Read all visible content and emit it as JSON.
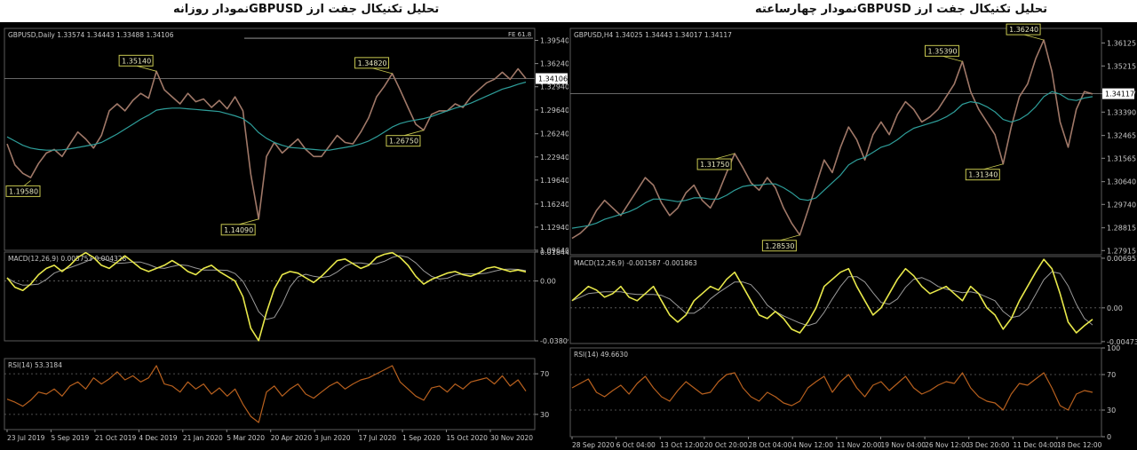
{
  "headings": {
    "left": "تحليل تکنيکال جفت ارز  GBPUSDنمودار روزانه",
    "right": "تحليل تکنيکال جفت ارز  GBPUSDنمودار چهارساعته"
  },
  "colors": {
    "background": "#000000",
    "price_line": "#a07868",
    "ma_line": "#2e9e9a",
    "macd_line": "#e8e84a",
    "signal_line": "#9a9a9a",
    "rsi_line": "#b8601e",
    "text": "#c8c8c8",
    "label_border": "#c8c850"
  },
  "chart_data": [
    {
      "type": "line",
      "id": "daily",
      "info_label": "GBPUSD,Daily  1.33574 1.34443 1.33488 1.34106",
      "price_axis": {
        "ticks": [
          "1.39540",
          "1.36240",
          "1.32940",
          "1.29640",
          "1.26240",
          "1.22940",
          "1.19640",
          "1.16240",
          "1.12940",
          "1.09640"
        ],
        "ylim": [
          1.0964,
          1.4125
        ],
        "current": "1.34106",
        "current_value": 1.34106,
        "fe_label": "FE 61.8",
        "fe_value": 1.3985
      },
      "price": [
        1.248,
        1.218,
        1.206,
        1.2,
        1.22,
        1.235,
        1.24,
        1.23,
        1.248,
        1.265,
        1.255,
        1.242,
        1.26,
        1.295,
        1.305,
        1.295,
        1.31,
        1.32,
        1.313,
        1.3514,
        1.325,
        1.315,
        1.305,
        1.32,
        1.308,
        1.312,
        1.3,
        1.31,
        1.298,
        1.315,
        1.295,
        1.205,
        1.1409,
        1.23,
        1.25,
        1.235,
        1.245,
        1.255,
        1.24,
        1.23,
        1.23,
        1.245,
        1.26,
        1.25,
        1.248,
        1.265,
        1.285,
        1.315,
        1.33,
        1.3482,
        1.325,
        1.3,
        1.276,
        1.2675,
        1.29,
        1.295,
        1.295,
        1.305,
        1.3,
        1.315,
        1.325,
        1.335,
        1.34,
        1.35,
        1.34,
        1.355,
        1.3411
      ],
      "ma": [
        1.258,
        1.252,
        1.246,
        1.242,
        1.24,
        1.239,
        1.239,
        1.2395,
        1.241,
        1.243,
        1.245,
        1.247,
        1.25,
        1.256,
        1.262,
        1.269,
        1.276,
        1.283,
        1.289,
        1.296,
        1.298,
        1.299,
        1.299,
        1.298,
        1.297,
        1.296,
        1.295,
        1.294,
        1.291,
        1.288,
        1.284,
        1.276,
        1.264,
        1.256,
        1.25,
        1.246,
        1.243,
        1.242,
        1.241,
        1.24,
        1.239,
        1.239,
        1.241,
        1.243,
        1.245,
        1.248,
        1.252,
        1.258,
        1.265,
        1.272,
        1.277,
        1.28,
        1.282,
        1.284,
        1.287,
        1.291,
        1.295,
        1.299,
        1.302,
        1.306,
        1.311,
        1.316,
        1.321,
        1.326,
        1.329,
        1.333,
        1.336
      ],
      "price_labels": [
        {
          "text": "1.35140",
          "index": 19,
          "value": 1.3514
        },
        {
          "text": "1.19580",
          "index": 3,
          "value": 1.1958
        },
        {
          "text": "1.14090",
          "index": 32,
          "value": 1.1409
        },
        {
          "text": "1.34820",
          "index": 49,
          "value": 1.3482
        },
        {
          "text": "1.26750",
          "index": 53,
          "value": 1.2675
        }
      ],
      "macd": {
        "label": "MACD(12,26,9) 0.005753 0.004328",
        "ticks": [
          "0.018442",
          "0.00",
          "-0.038095"
        ],
        "ylim": [
          -0.0381,
          0.0184
        ],
        "values": [
          0.002,
          -0.004,
          -0.006,
          -0.002,
          0.004,
          0.008,
          0.01,
          0.006,
          0.01,
          0.015,
          0.018,
          0.015,
          0.01,
          0.008,
          0.012,
          0.016,
          0.012,
          0.008,
          0.006,
          0.008,
          0.01,
          0.013,
          0.01,
          0.006,
          0.004,
          0.008,
          0.01,
          0.006,
          0.003,
          0.0,
          -0.01,
          -0.03,
          -0.038,
          -0.02,
          -0.005,
          0.004,
          0.006,
          0.005,
          0.002,
          -0.001,
          0.003,
          0.008,
          0.013,
          0.014,
          0.011,
          0.008,
          0.01,
          0.015,
          0.017,
          0.018,
          0.015,
          0.01,
          0.003,
          -0.002,
          0.001,
          0.003,
          0.005,
          0.006,
          0.004,
          0.003,
          0.005,
          0.008,
          0.009,
          0.0075,
          0.006,
          0.007,
          0.0058
        ]
      },
      "rsi": {
        "label": "RSI(14) 53.3184",
        "ticks": [
          "70",
          "30"
        ],
        "ylim": [
          15,
          85
        ],
        "values": [
          45,
          42,
          38,
          44,
          52,
          50,
          55,
          48,
          58,
          62,
          55,
          66,
          60,
          65,
          72,
          64,
          68,
          62,
          66,
          78,
          60,
          58,
          52,
          62,
          55,
          60,
          50,
          56,
          48,
          55,
          40,
          28,
          22,
          52,
          58,
          48,
          55,
          60,
          50,
          46,
          52,
          58,
          62,
          55,
          60,
          64,
          66,
          70,
          74,
          78,
          62,
          55,
          48,
          44,
          56,
          58,
          52,
          60,
          55,
          62,
          64,
          66,
          60,
          68,
          58,
          64,
          53
        ]
      },
      "x_ticks": [
        "23 Jul 2019",
        "5 Sep 2019",
        "21 Oct 2019",
        "4 Dec 2019",
        "21 Jan 2020",
        "5 Mar 2020",
        "20 Apr 2020",
        "3 Jun 2020",
        "17 Jul 2020",
        "1 Sep 2020",
        "15 Oct 2020",
        "30 Nov 2020"
      ]
    },
    {
      "type": "line",
      "id": "h4",
      "info_label": "GBPUSD,H4  1.34025 1.34443 1.34017 1.34117",
      "price_axis": {
        "ticks": [
          "1.36125",
          "1.35215",
          "1.34117",
          "1.33390",
          "1.32465",
          "1.31565",
          "1.30640",
          "1.29740",
          "1.28815",
          "1.27915"
        ],
        "ylim": [
          1.2775,
          1.367
        ],
        "current": "1.34117",
        "current_value": 1.34117
      },
      "price": [
        1.284,
        1.286,
        1.289,
        1.295,
        1.299,
        1.296,
        1.293,
        1.298,
        1.303,
        1.308,
        1.305,
        1.298,
        1.293,
        1.296,
        1.302,
        1.305,
        1.299,
        1.296,
        1.302,
        1.31,
        1.3175,
        1.312,
        1.306,
        1.303,
        1.308,
        1.304,
        1.296,
        1.29,
        1.2853,
        1.295,
        1.305,
        1.315,
        1.31,
        1.32,
        1.328,
        1.323,
        1.315,
        1.325,
        1.33,
        1.325,
        1.333,
        1.338,
        1.335,
        1.33,
        1.332,
        1.335,
        1.34,
        1.345,
        1.3539,
        1.342,
        1.335,
        1.33,
        1.325,
        1.3134,
        1.328,
        1.34,
        1.345,
        1.355,
        1.3624,
        1.35,
        1.33,
        1.32,
        1.335,
        1.342,
        1.3411
      ],
      "ma": [
        1.288,
        1.2885,
        1.289,
        1.29,
        1.2915,
        1.2925,
        1.2935,
        1.2945,
        1.296,
        1.298,
        1.2995,
        1.2995,
        1.299,
        1.2985,
        1.299,
        1.3,
        1.3,
        1.2995,
        1.2995,
        1.301,
        1.303,
        1.3045,
        1.305,
        1.305,
        1.3055,
        1.3055,
        1.304,
        1.302,
        1.2995,
        1.299,
        1.3,
        1.303,
        1.306,
        1.309,
        1.313,
        1.315,
        1.316,
        1.318,
        1.32,
        1.321,
        1.323,
        1.3255,
        1.3275,
        1.3285,
        1.3295,
        1.3305,
        1.332,
        1.334,
        1.337,
        1.338,
        1.3375,
        1.336,
        1.334,
        1.331,
        1.33,
        1.331,
        1.333,
        1.336,
        1.34,
        1.342,
        1.341,
        1.339,
        1.3385,
        1.3395,
        1.34
      ],
      "price_labels": [
        {
          "text": "1.31750",
          "index": 20,
          "value": 1.3175
        },
        {
          "text": "1.28530",
          "index": 28,
          "value": 1.2853
        },
        {
          "text": "1.35390",
          "index": 48,
          "value": 1.3539
        },
        {
          "text": "1.31340",
          "index": 53,
          "value": 1.3134
        },
        {
          "text": "1.36240",
          "index": 58,
          "value": 1.3624
        }
      ],
      "macd": {
        "label": "MACD(12,26,9) -0.001587 -0.001863",
        "ticks": [
          "0.006957",
          "0.00",
          "-0.004736"
        ],
        "ylim": [
          -0.005,
          0.0072
        ],
        "values": [
          0.001,
          0.002,
          0.003,
          0.0025,
          0.0015,
          0.002,
          0.003,
          0.0015,
          0.001,
          0.002,
          0.003,
          0.001,
          -0.001,
          -0.002,
          -0.001,
          0.001,
          0.002,
          0.003,
          0.0025,
          0.004,
          0.005,
          0.003,
          0.001,
          -0.001,
          -0.0015,
          -0.0005,
          -0.0015,
          -0.003,
          -0.0035,
          -0.002,
          0.0,
          0.003,
          0.004,
          0.005,
          0.0055,
          0.003,
          0.001,
          -0.001,
          0.0,
          0.002,
          0.004,
          0.0055,
          0.0045,
          0.003,
          0.002,
          0.0025,
          0.003,
          0.002,
          0.001,
          0.003,
          0.002,
          0.0,
          -0.001,
          -0.003,
          -0.0015,
          0.001,
          0.003,
          0.005,
          0.0068,
          0.0055,
          0.002,
          -0.002,
          -0.0035,
          -0.0025,
          -0.0016
        ]
      },
      "rsi": {
        "label": "RSI(14) 49.6630",
        "ticks": [
          "100",
          "70",
          "30",
          "0"
        ],
        "ylim": [
          0,
          100
        ],
        "values": [
          55,
          60,
          65,
          50,
          45,
          52,
          58,
          48,
          60,
          68,
          55,
          45,
          40,
          52,
          62,
          55,
          48,
          50,
          62,
          70,
          72,
          55,
          45,
          40,
          50,
          45,
          38,
          35,
          40,
          55,
          62,
          68,
          50,
          62,
          70,
          55,
          45,
          58,
          62,
          52,
          60,
          68,
          55,
          48,
          52,
          58,
          62,
          60,
          72,
          55,
          45,
          40,
          38,
          30,
          48,
          60,
          58,
          65,
          72,
          55,
          35,
          30,
          48,
          52,
          50
        ]
      },
      "x_ticks": [
        "28 Sep 2020",
        "6 Oct 04:00",
        "13 Oct 12:00",
        "20 Oct 20:00",
        "28 Oct 04:00",
        "4 Nov 12:00",
        "11 Nov 20:00",
        "19 Nov 04:00",
        "26 Nov 12:00",
        "3 Dec 20:00",
        "11 Dec 04:00",
        "18 Dec 12:00"
      ]
    }
  ]
}
